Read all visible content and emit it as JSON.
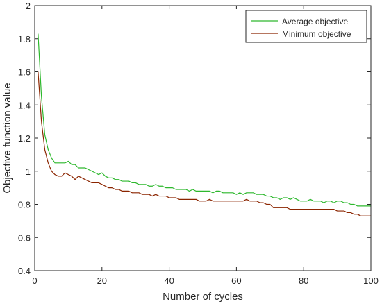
{
  "chart_data": {
    "type": "line",
    "title": "",
    "xlabel": "Number of cycles",
    "ylabel": "Objective function value",
    "xlim": [
      0,
      100
    ],
    "ylim": [
      0.4,
      2
    ],
    "x_ticks": [
      0,
      20,
      40,
      60,
      80,
      100
    ],
    "y_ticks": [
      0.4,
      0.6,
      0.8,
      1,
      1.2,
      1.4,
      1.6,
      1.8,
      2
    ],
    "grid": false,
    "legend_position": "top-right",
    "x": [
      1,
      2,
      3,
      4,
      5,
      6,
      7,
      8,
      9,
      10,
      11,
      12,
      13,
      14,
      15,
      16,
      17,
      18,
      19,
      20,
      21,
      22,
      23,
      24,
      25,
      26,
      27,
      28,
      29,
      30,
      31,
      32,
      33,
      34,
      35,
      36,
      37,
      38,
      39,
      40,
      41,
      42,
      43,
      44,
      45,
      46,
      47,
      48,
      49,
      50,
      51,
      52,
      53,
      54,
      55,
      56,
      57,
      58,
      59,
      60,
      61,
      62,
      63,
      64,
      65,
      66,
      67,
      68,
      69,
      70,
      71,
      72,
      73,
      74,
      75,
      76,
      77,
      78,
      79,
      80,
      81,
      82,
      83,
      84,
      85,
      86,
      87,
      88,
      89,
      90,
      91,
      92,
      93,
      94,
      95,
      96,
      97,
      98,
      99,
      100
    ],
    "series": [
      {
        "name": "Average objective",
        "color": "#2db82d",
        "values": [
          1.83,
          1.45,
          1.22,
          1.13,
          1.08,
          1.05,
          1.05,
          1.05,
          1.05,
          1.06,
          1.04,
          1.04,
          1.02,
          1.02,
          1.02,
          1.01,
          1.0,
          0.99,
          0.98,
          0.99,
          0.97,
          0.96,
          0.96,
          0.95,
          0.95,
          0.94,
          0.94,
          0.94,
          0.93,
          0.93,
          0.92,
          0.92,
          0.92,
          0.91,
          0.91,
          0.92,
          0.91,
          0.91,
          0.9,
          0.9,
          0.9,
          0.89,
          0.89,
          0.89,
          0.89,
          0.88,
          0.89,
          0.88,
          0.88,
          0.88,
          0.88,
          0.88,
          0.87,
          0.88,
          0.88,
          0.87,
          0.87,
          0.87,
          0.87,
          0.86,
          0.87,
          0.86,
          0.87,
          0.87,
          0.87,
          0.86,
          0.86,
          0.86,
          0.85,
          0.85,
          0.84,
          0.84,
          0.83,
          0.84,
          0.84,
          0.83,
          0.84,
          0.83,
          0.82,
          0.82,
          0.82,
          0.83,
          0.82,
          0.82,
          0.82,
          0.81,
          0.82,
          0.82,
          0.81,
          0.82,
          0.82,
          0.81,
          0.81,
          0.8,
          0.8,
          0.79,
          0.79,
          0.79,
          0.79,
          0.79
        ]
      },
      {
        "name": "Minimum objective",
        "color": "#8b2500",
        "values": [
          1.6,
          1.3,
          1.13,
          1.05,
          1.0,
          0.98,
          0.97,
          0.97,
          0.99,
          0.98,
          0.97,
          0.95,
          0.97,
          0.96,
          0.95,
          0.94,
          0.93,
          0.93,
          0.93,
          0.92,
          0.91,
          0.9,
          0.9,
          0.89,
          0.89,
          0.88,
          0.88,
          0.88,
          0.87,
          0.87,
          0.87,
          0.86,
          0.86,
          0.86,
          0.85,
          0.86,
          0.85,
          0.85,
          0.85,
          0.84,
          0.84,
          0.84,
          0.83,
          0.83,
          0.83,
          0.83,
          0.83,
          0.83,
          0.82,
          0.82,
          0.82,
          0.83,
          0.82,
          0.82,
          0.82,
          0.82,
          0.82,
          0.82,
          0.82,
          0.82,
          0.82,
          0.82,
          0.83,
          0.82,
          0.82,
          0.82,
          0.81,
          0.81,
          0.8,
          0.8,
          0.78,
          0.78,
          0.78,
          0.78,
          0.78,
          0.77,
          0.77,
          0.77,
          0.77,
          0.77,
          0.77,
          0.77,
          0.77,
          0.77,
          0.77,
          0.77,
          0.77,
          0.77,
          0.77,
          0.76,
          0.76,
          0.76,
          0.75,
          0.75,
          0.74,
          0.74,
          0.73,
          0.73,
          0.73,
          0.73
        ]
      }
    ]
  }
}
